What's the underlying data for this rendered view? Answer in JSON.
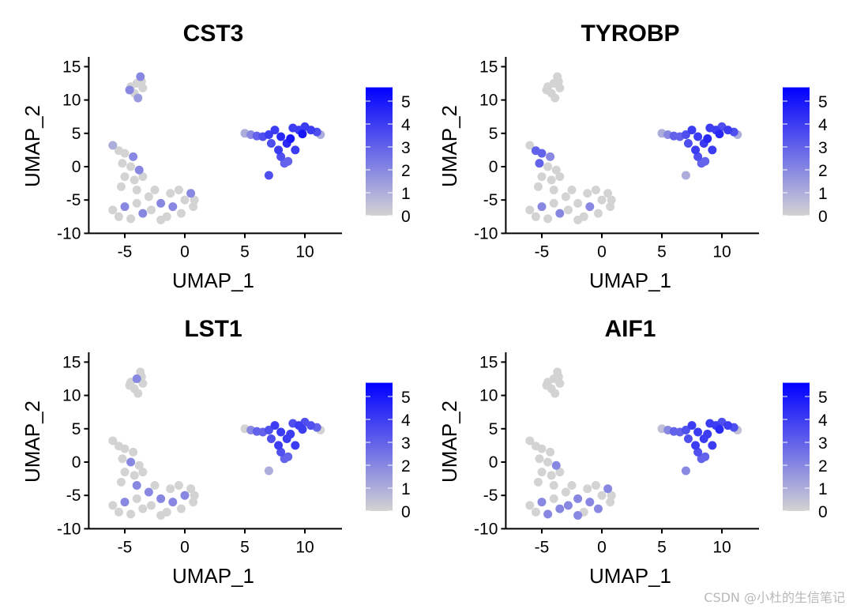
{
  "watermark": "CSDN @小杜的生信笔记",
  "chart_data": {
    "type": "scatter",
    "layout": "2x2 grid",
    "color_scale": {
      "low": "#d3d3d3",
      "high": "#0000ff",
      "min": 0,
      "max": 5.6,
      "ticks": [
        "0",
        "1",
        "2",
        "3",
        "4",
        "5"
      ]
    },
    "xlabel": "UMAP_1",
    "ylabel": "UMAP_2",
    "xlim": [
      -8,
      13
    ],
    "ylim": [
      -10,
      16.5
    ],
    "xticks": [
      "-5",
      "0",
      "5",
      "10"
    ],
    "xtick_values": [
      -5,
      0,
      5,
      10
    ],
    "yticks": [
      "-10",
      "-5",
      "0",
      "5",
      "10",
      "15"
    ],
    "ytick_values": [
      -10,
      -5,
      0,
      5,
      10,
      15
    ],
    "grid": false,
    "legend": "right",
    "cells": {
      "umap_1": [
        -4.5,
        -4,
        -3.7,
        -4.2,
        -3.5,
        -4.6,
        -3.9,
        -3.6,
        -6,
        -5.5,
        -5,
        -4.3,
        -5.2,
        -4.5,
        -3.8,
        -5,
        -4.2,
        -3.5,
        -5.3,
        -4,
        -6,
        -5.5,
        -5,
        -4.5,
        -4,
        -3.5,
        -3,
        -2.8,
        -2.5,
        -2,
        -1.5,
        -1.2,
        -1,
        -0.5,
        -0.3,
        0,
        0.5,
        0.7,
        -2,
        0.8,
        5,
        5.5,
        6,
        6.5,
        7,
        7.5,
        7.2,
        7.8,
        8,
        8.3,
        8.6,
        8.5,
        8.8,
        9,
        9.5,
        9.8,
        10,
        10.5,
        11,
        11.3,
        9.2,
        8,
        7
      ],
      "umap_2": [
        12,
        12.5,
        13.5,
        11,
        11.8,
        11.5,
        10.3,
        12.8,
        3.2,
        2.4,
        2,
        1.5,
        0.5,
        0,
        -0.5,
        -1.5,
        -2,
        -1.5,
        -3,
        -3.5,
        -6.5,
        -7.5,
        -6,
        -7.8,
        -5.5,
        -7,
        -4.5,
        -6.5,
        -3.5,
        -5.5,
        -7.5,
        -4,
        -6,
        -3.5,
        -7,
        -5,
        -4,
        -6,
        -8,
        -5,
        5,
        4.8,
        4.6,
        4.5,
        4.8,
        5.5,
        3.5,
        2.5,
        1.5,
        0.5,
        0.8,
        3.5,
        4.2,
        5.8,
        5.5,
        4.9,
        6,
        5.5,
        5.2,
        4.8,
        2.5,
        4.5,
        -1.3
      ]
    },
    "panels": [
      {
        "title": "CST3",
        "expression": [
          0,
          0,
          2,
          0,
          0,
          2,
          1.5,
          0,
          1,
          0,
          0,
          2,
          0,
          0,
          2,
          0,
          0,
          0,
          0,
          0,
          0,
          0,
          2,
          0,
          0,
          2,
          0,
          0,
          0,
          2,
          0,
          0,
          2,
          0,
          0,
          0,
          2,
          0,
          0,
          0,
          1,
          2,
          3,
          3.5,
          4,
          4,
          3.5,
          4,
          3.5,
          3,
          3,
          4.5,
          5,
          4,
          4,
          5,
          4,
          4,
          3.5,
          1,
          4,
          4.5,
          3.5
        ]
      },
      {
        "title": "TYROBP",
        "expression": [
          0,
          0,
          0,
          0,
          0,
          0,
          0,
          0,
          0,
          3,
          3,
          2,
          3,
          0,
          0,
          0,
          0,
          0,
          0,
          0,
          0,
          0,
          2,
          0,
          0,
          2,
          0,
          0,
          0,
          0,
          0,
          0,
          2,
          0,
          0,
          0,
          0,
          0,
          0,
          0,
          1,
          2,
          3,
          3,
          3.5,
          4,
          3.5,
          4,
          3.5,
          3,
          3,
          4,
          4.5,
          4,
          4,
          4.5,
          3.5,
          4,
          3.5,
          1,
          4,
          4,
          1
        ]
      },
      {
        "title": "LST1",
        "expression": [
          0,
          2,
          0,
          0,
          0,
          0,
          0,
          0,
          0,
          0,
          0,
          0,
          0,
          2,
          0,
          0,
          0,
          0,
          0,
          2,
          0,
          0,
          2,
          0,
          0,
          0,
          2,
          0,
          0,
          2,
          0,
          0,
          2,
          0,
          0,
          2,
          0,
          0,
          0,
          0,
          0,
          2,
          3,
          3,
          3.5,
          4,
          3.5,
          4,
          3.5,
          3,
          3,
          4,
          4,
          3.5,
          4,
          4,
          3.5,
          3.5,
          3,
          0,
          4,
          4,
          1
        ]
      },
      {
        "title": "AIF1",
        "expression": [
          0,
          0,
          0,
          0,
          0,
          0,
          0,
          0,
          0,
          0,
          0,
          0,
          0,
          0,
          2,
          0,
          0,
          0,
          0,
          0,
          0,
          0,
          2,
          2,
          0,
          2,
          0,
          2,
          0,
          2,
          0,
          0,
          2,
          0,
          2,
          0,
          2,
          0,
          2,
          0,
          0.5,
          2,
          3,
          3,
          3.5,
          4,
          3.5,
          4,
          3.5,
          3,
          3,
          4,
          4,
          4,
          4,
          4.5,
          3.5,
          4,
          3.5,
          0.5,
          4,
          4,
          2
        ]
      }
    ]
  }
}
